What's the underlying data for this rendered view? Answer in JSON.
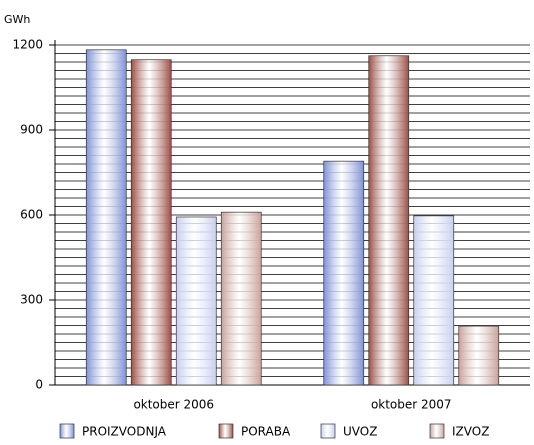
{
  "chart_data": {
    "type": "bar",
    "unit": "GWh",
    "categories": [
      "oktober 2006",
      "oktober 2007"
    ],
    "series": [
      {
        "name": "PROIZVODNJA",
        "color": "#7f92d6",
        "values": [
          1183,
          790
        ]
      },
      {
        "name": "PORABA",
        "color": "#9c4f46",
        "values": [
          1148,
          1162
        ]
      },
      {
        "name": "UVOZ",
        "color": "#c9cff0",
        "values": [
          593,
          597
        ]
      },
      {
        "name": "IZVOZ",
        "color": "#c9a29c",
        "values": [
          610,
          208
        ]
      }
    ],
    "ylim": [
      0,
      1200
    ],
    "yticks": [
      0,
      300,
      600,
      900,
      1200
    ],
    "grid_yticks": [
      0,
      30,
      60,
      90,
      120,
      150,
      180,
      210,
      240,
      270,
      300,
      330,
      360,
      390,
      420,
      450,
      480,
      510,
      540,
      570,
      600,
      630,
      660,
      690,
      720,
      750,
      780,
      810,
      840,
      870,
      900,
      930,
      960,
      990,
      1020,
      1050,
      1080,
      1110,
      1140,
      1170,
      1200
    ],
    "grid": true,
    "legend": "bottom"
  }
}
